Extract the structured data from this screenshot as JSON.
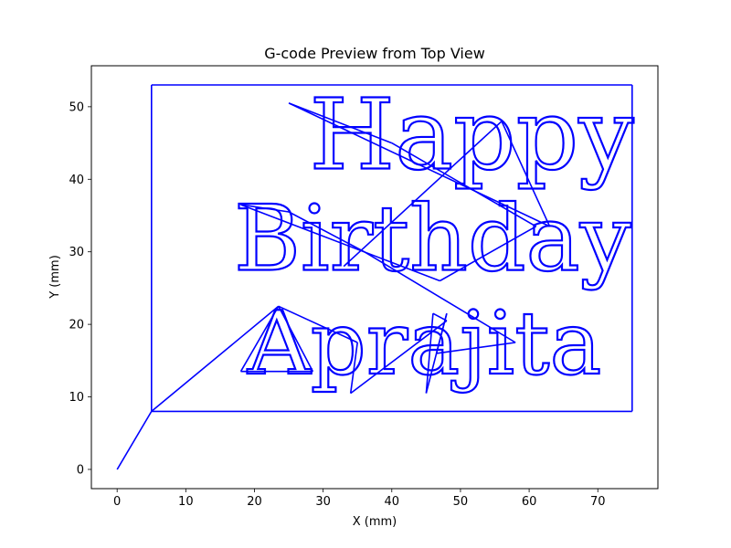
{
  "chart_data": {
    "type": "line",
    "title": "G-code Preview from Top View",
    "xlabel": "X (mm)",
    "ylabel": "Y (mm)",
    "xlim": [
      -3.75,
      78.75
    ],
    "ylim": [
      -2.65,
      55.65
    ],
    "xticks": [
      0,
      10,
      20,
      30,
      40,
      50,
      60,
      70
    ],
    "yticks": [
      0,
      10,
      20,
      30,
      40,
      50
    ],
    "grid": false,
    "line_color": "#0000ff",
    "series": [
      {
        "values_desc": "toolpath",
        "points": [
          [
            0,
            0
          ],
          [
            5,
            8
          ],
          [
            75,
            8
          ],
          [
            75,
            53
          ],
          [
            5,
            53
          ],
          [
            5,
            8
          ],
          [
            23.5,
            22.5
          ],
          [
            18,
            13.5
          ],
          [
            28.5,
            13.5
          ],
          [
            23.5,
            22.5
          ],
          [
            35,
            17.5
          ],
          [
            34,
            10.5
          ],
          [
            48,
            20.5
          ],
          [
            46,
            21.5
          ],
          [
            45,
            10.5
          ],
          [
            48,
            21.5
          ],
          [
            46.5,
            16
          ],
          [
            58,
            17.5
          ],
          [
            36,
            30
          ],
          [
            25,
            35.5
          ],
          [
            18,
            36.5
          ],
          [
            47,
            26
          ],
          [
            61,
            33.5
          ],
          [
            40,
            45
          ],
          [
            25,
            50.5
          ],
          [
            63,
            33.5
          ],
          [
            56,
            48
          ],
          [
            33,
            28
          ]
        ]
      }
    ],
    "text_paths": [
      {
        "text": "Happy",
        "x": 28,
        "y": 41.5,
        "size": 13.5
      },
      {
        "text": "Birthday",
        "x": 17,
        "y": 27.5,
        "size": 12.5
      },
      {
        "text": "Aprajita",
        "x": 19,
        "y": 13.2,
        "size": 12.0
      }
    ]
  }
}
